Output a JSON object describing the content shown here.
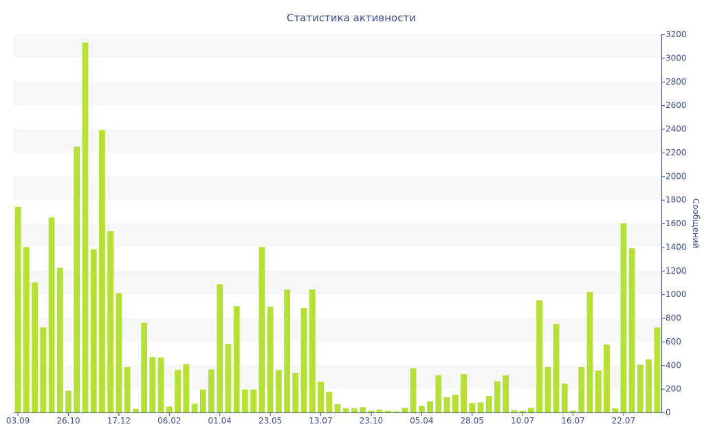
{
  "chart_data": {
    "type": "bar",
    "title": "Статистика активности",
    "xlabel": "",
    "ylabel": "Сообщений",
    "y_axis_position": "right",
    "ylim": [
      0,
      3200
    ],
    "yticks": [
      0,
      200,
      400,
      600,
      800,
      1000,
      1200,
      1400,
      1600,
      1800,
      2000,
      2200,
      2400,
      2600,
      2800,
      3000,
      3200
    ],
    "xtick_labels": [
      {
        "index": 0,
        "label": "03.09"
      },
      {
        "index": 6,
        "label": "26.10"
      },
      {
        "index": 12,
        "label": "17.12"
      },
      {
        "index": 18,
        "label": "06.02"
      },
      {
        "index": 24,
        "label": "01.04"
      },
      {
        "index": 30,
        "label": "23.05"
      },
      {
        "index": 36,
        "label": "13.07"
      },
      {
        "index": 42,
        "label": "23.10"
      },
      {
        "index": 48,
        "label": "05.04"
      },
      {
        "index": 54,
        "label": "28.05"
      },
      {
        "index": 60,
        "label": "10.07"
      },
      {
        "index": 66,
        "label": "16.07"
      },
      {
        "index": 72,
        "label": "22.07"
      }
    ],
    "values": [
      1740,
      1400,
      1100,
      720,
      1650,
      1225,
      185,
      2250,
      3130,
      1380,
      2390,
      1535,
      1010,
      385,
      30,
      760,
      470,
      465,
      50,
      360,
      410,
      75,
      195,
      365,
      1085,
      580,
      900,
      195,
      195,
      1400,
      895,
      360,
      1040,
      335,
      885,
      1040,
      260,
      175,
      70,
      35,
      35,
      45,
      15,
      25,
      15,
      10,
      40,
      375,
      55,
      95,
      315,
      130,
      150,
      325,
      80,
      85,
      140,
      265,
      315,
      20,
      15,
      40,
      950,
      385,
      750,
      245,
      15,
      385,
      1020,
      355,
      575,
      35,
      1600,
      1390,
      405,
      450,
      720
    ],
    "grid": "horizontal alternating bands",
    "legend": "none",
    "colors": {
      "bar": "#b5e134",
      "band": "#f7f7f7",
      "text": "#3e4d8a",
      "axis": "#3e4d8a"
    }
  }
}
